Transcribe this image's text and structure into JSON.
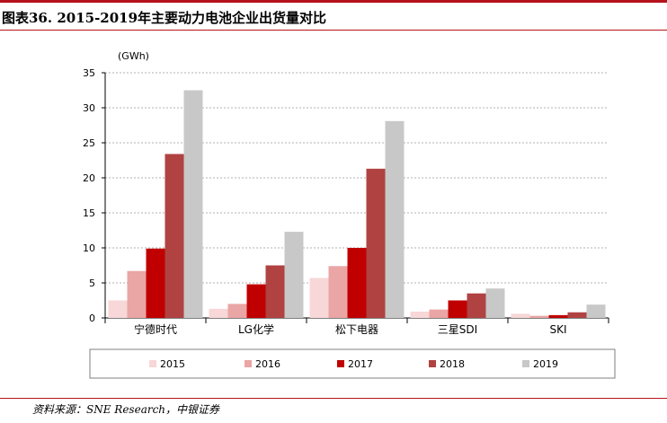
{
  "title": "图表36. 2015-2019年主要动力电池企业出货量对比",
  "source": "资料来源：SNE Research，中银证券",
  "colors": {
    "brand_red": "#b5121b",
    "grid": "#b0b0b0",
    "series": [
      "#f7d7d7",
      "#eaa5a5",
      "#c00000",
      "#b04242",
      "#c8c8c8"
    ]
  },
  "chart_data": {
    "type": "bar",
    "unit_label": "(GWh)",
    "categories": [
      "宁德时代",
      "LG化学",
      "松下电器",
      "三星SDI",
      "SKI"
    ],
    "ylim": [
      0,
      35
    ],
    "yticks": [
      0,
      5,
      10,
      15,
      20,
      25,
      30,
      35
    ],
    "grid": true,
    "legend_position": "bottom",
    "series": [
      {
        "name": "2015",
        "values": [
          2.5,
          1.3,
          5.7,
          0.9,
          0.6
        ]
      },
      {
        "name": "2016",
        "values": [
          6.7,
          2.0,
          7.4,
          1.2,
          0.3
        ]
      },
      {
        "name": "2017",
        "values": [
          9.9,
          4.8,
          10.0,
          2.5,
          0.4
        ]
      },
      {
        "name": "2018",
        "values": [
          23.4,
          7.5,
          21.3,
          3.5,
          0.8
        ]
      },
      {
        "name": "2019",
        "values": [
          32.5,
          12.3,
          28.1,
          4.2,
          1.9
        ]
      }
    ]
  }
}
